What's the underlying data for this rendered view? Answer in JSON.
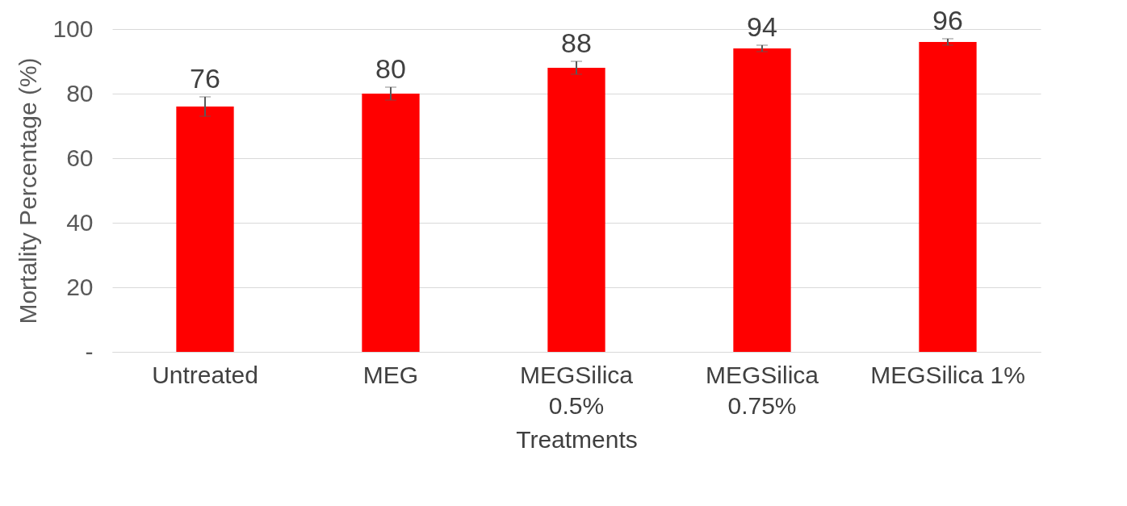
{
  "chart_data": {
    "type": "bar",
    "xlabel": "Treatments",
    "ylabel": "Mortality Percentage (%)",
    "categories": [
      "Untreated",
      "MEG",
      "MEGSilica 0.5%",
      "MEGSilica 0.75%",
      "MEGSilica 1%"
    ],
    "values": [
      76,
      80,
      88,
      94,
      96
    ],
    "errors": [
      3,
      2,
      2,
      1,
      1
    ],
    "color": "#ff0000",
    "data_labels": true,
    "ylim": [
      0,
      100
    ],
    "yticks": [
      {
        "value": 0,
        "label": "-"
      },
      20,
      40,
      60,
      80,
      100
    ],
    "grid": "y"
  }
}
